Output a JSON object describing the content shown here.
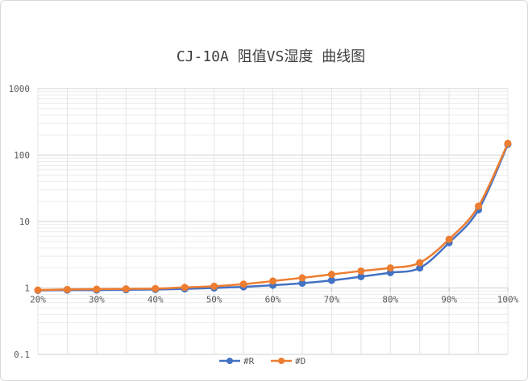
{
  "chart_data": {
    "type": "line",
    "title": "CJ-10A 阻值VS湿度 曲线图",
    "y_scale": "log",
    "ylim": [
      0.1,
      1000
    ],
    "y_ticks": [
      {
        "value": 0.1,
        "label": "0.1"
      },
      {
        "value": 1,
        "label": "1"
      },
      {
        "value": 10,
        "label": "10"
      },
      {
        "value": 100,
        "label": "100"
      },
      {
        "value": 1000,
        "label": "1000"
      }
    ],
    "x": [
      0.2,
      0.25,
      0.3,
      0.35,
      0.4,
      0.45,
      0.5,
      0.55,
      0.6,
      0.65,
      0.7,
      0.75,
      0.8,
      0.85,
      0.9,
      0.95,
      1.0
    ],
    "x_ticks": [
      {
        "value": 0.2,
        "label": "20%"
      },
      {
        "value": 0.3,
        "label": "30%"
      },
      {
        "value": 0.4,
        "label": "40%"
      },
      {
        "value": 0.5,
        "label": "50%"
      },
      {
        "value": 0.6,
        "label": "60%"
      },
      {
        "value": 0.7,
        "label": "70%"
      },
      {
        "value": 0.8,
        "label": "80%"
      },
      {
        "value": 0.9,
        "label": "90%"
      },
      {
        "value": 1.0,
        "label": "100%"
      }
    ],
    "xlim": [
      0.2,
      1.0
    ],
    "series": [
      {
        "name": "#R",
        "color": "#4472c4",
        "values": [
          0.92,
          0.93,
          0.93,
          0.94,
          0.95,
          0.97,
          1.0,
          1.04,
          1.1,
          1.18,
          1.3,
          1.48,
          1.7,
          2.0,
          4.8,
          15.0,
          145
        ]
      },
      {
        "name": "#D",
        "color": "#ed7d31",
        "values": [
          0.93,
          0.95,
          0.96,
          0.97,
          0.98,
          1.02,
          1.06,
          1.14,
          1.27,
          1.42,
          1.6,
          1.8,
          2.0,
          2.4,
          5.4,
          17.0,
          150
        ]
      }
    ],
    "grid": "on",
    "legend": "bottom"
  }
}
